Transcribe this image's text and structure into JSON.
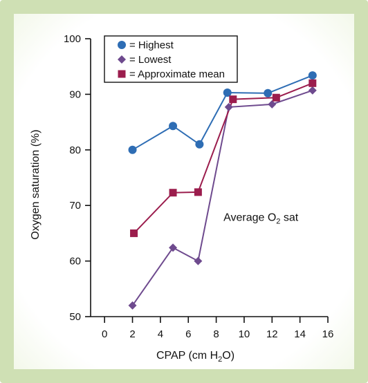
{
  "chart_data": {
    "type": "line",
    "xlabel_main": "CPAP (cm H",
    "xlabel_sub": "2",
    "xlabel_end": "O)",
    "ylabel": "Oxygen saturation (%)",
    "xlim": [
      -1,
      16
    ],
    "ylim": [
      50,
      100
    ],
    "x_ticks": [
      0,
      2,
      4,
      6,
      8,
      10,
      12,
      14,
      16
    ],
    "y_ticks": [
      50,
      60,
      70,
      80,
      90,
      100
    ],
    "annotation": {
      "main": "Average O",
      "sub": "2",
      "end": " sat",
      "x": 11.2,
      "y": 67.2
    },
    "legend_position": "top-left",
    "series": [
      {
        "name": "= Highest",
        "marker": "circle",
        "color": "#2e6db4",
        "x": [
          2.0,
          4.9,
          6.8,
          8.8,
          11.7,
          14.9
        ],
        "y": [
          80.0,
          84.3,
          81.0,
          90.3,
          90.2,
          93.4
        ]
      },
      {
        "name": "= Lowest",
        "marker": "diamond",
        "color": "#6e4a8e",
        "x": [
          2.0,
          4.9,
          6.7,
          8.9,
          12.0,
          14.9
        ],
        "y": [
          52.0,
          62.4,
          60.0,
          87.7,
          88.2,
          90.7
        ]
      },
      {
        "name": "= Approximate mean",
        "marker": "square",
        "color": "#9b1d4d",
        "x": [
          2.1,
          4.9,
          6.7,
          9.2,
          12.3,
          14.9
        ],
        "y": [
          65.0,
          72.3,
          72.4,
          89.1,
          89.4,
          92.0
        ]
      }
    ]
  }
}
